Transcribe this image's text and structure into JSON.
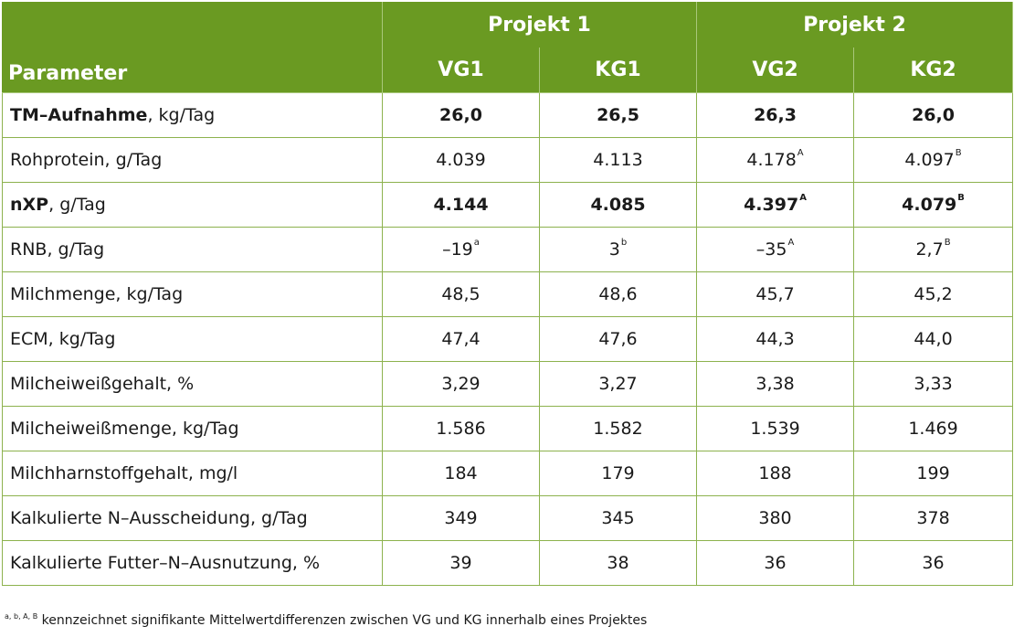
{
  "header": {
    "parameter": "Parameter",
    "projects": [
      "Projekt 1",
      "Projekt 2"
    ],
    "groups": [
      "VG1",
      "KG1",
      "VG2",
      "KG2"
    ]
  },
  "rows": [
    {
      "label_bold": "TM–Aufnahme",
      "label": ", kg/Tag",
      "bold": true,
      "values": [
        [
          "26,0",
          ""
        ],
        [
          "26,5",
          ""
        ],
        [
          "26,3",
          ""
        ],
        [
          "26,0",
          ""
        ]
      ]
    },
    {
      "label_bold": "",
      "label": "Rohprotein, g/Tag",
      "bold": false,
      "values": [
        [
          "4.039",
          ""
        ],
        [
          "4.113",
          ""
        ],
        [
          "4.178",
          "A"
        ],
        [
          "4.097",
          "B"
        ]
      ]
    },
    {
      "label_bold": "nXP",
      "label": ", g/Tag",
      "bold": true,
      "values": [
        [
          "4.144",
          ""
        ],
        [
          "4.085",
          ""
        ],
        [
          "4.397",
          "A"
        ],
        [
          "4.079",
          "B"
        ]
      ]
    },
    {
      "label_bold": "",
      "label": "RNB, g/Tag",
      "bold": false,
      "values": [
        [
          "–19",
          "a"
        ],
        [
          "3",
          "b"
        ],
        [
          "–35",
          "A"
        ],
        [
          "2,7",
          "B"
        ]
      ]
    },
    {
      "label_bold": "",
      "label": "Milchmenge, kg/Tag",
      "bold": false,
      "values": [
        [
          "48,5",
          ""
        ],
        [
          "48,6",
          ""
        ],
        [
          "45,7",
          ""
        ],
        [
          "45,2",
          ""
        ]
      ]
    },
    {
      "label_bold": "",
      "label": "ECM, kg/Tag",
      "bold": false,
      "values": [
        [
          "47,4",
          ""
        ],
        [
          "47,6",
          ""
        ],
        [
          "44,3",
          ""
        ],
        [
          "44,0",
          ""
        ]
      ]
    },
    {
      "label_bold": "",
      "label": "Milcheiweißgehalt, %",
      "bold": false,
      "values": [
        [
          "3,29",
          ""
        ],
        [
          "3,27",
          ""
        ],
        [
          "3,38",
          ""
        ],
        [
          "3,33",
          ""
        ]
      ]
    },
    {
      "label_bold": "",
      "label": "Milcheiweißmenge, kg/Tag",
      "bold": false,
      "values": [
        [
          "1.586",
          ""
        ],
        [
          "1.582",
          ""
        ],
        [
          "1.539",
          ""
        ],
        [
          "1.469",
          ""
        ]
      ]
    },
    {
      "label_bold": "",
      "label": "Milchharnstoffgehalt, mg/l",
      "bold": false,
      "values": [
        [
          "184",
          ""
        ],
        [
          "179",
          ""
        ],
        [
          "188",
          ""
        ],
        [
          "199",
          ""
        ]
      ]
    },
    {
      "label_bold": "",
      "label": "Kalkulierte N–Ausscheidung, g/Tag",
      "bold": false,
      "values": [
        [
          "349",
          ""
        ],
        [
          "345",
          ""
        ],
        [
          "380",
          ""
        ],
        [
          "378",
          ""
        ]
      ]
    },
    {
      "label_bold": "",
      "label": "Kalkulierte Futter–N–Ausnutzung, %",
      "bold": false,
      "values": [
        [
          "39",
          ""
        ],
        [
          "38",
          ""
        ],
        [
          "36",
          ""
        ],
        [
          "36",
          ""
        ]
      ]
    }
  ],
  "footnote": {
    "marks": "a, b, A, B",
    "text": " kennzeichnet signifikante Mittelwertdifferenzen zwischen VG und KG innerhalb eines Projektes"
  },
  "colors": {
    "header_bg": "#6a9a22",
    "border": "#8db24e"
  }
}
